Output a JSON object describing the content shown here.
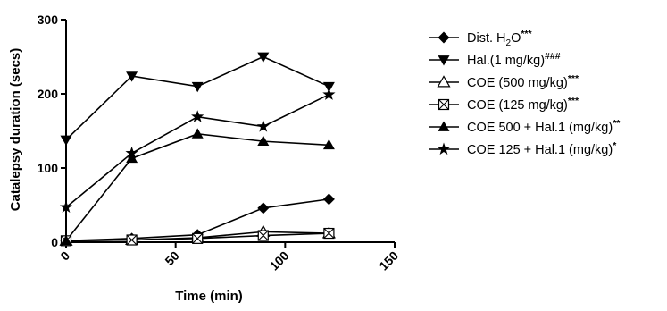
{
  "chart_data": {
    "type": "line",
    "xlabel": "Time (min)",
    "ylabel": "Catalepsy duration (secs)",
    "xlim": [
      0,
      150
    ],
    "ylim": [
      0,
      300
    ],
    "x_ticks": [
      0,
      50,
      100,
      150
    ],
    "y_ticks": [
      0,
      100,
      200,
      300
    ],
    "x_tick_labels": [
      "0",
      "50",
      "100",
      "150"
    ],
    "y_tick_labels": [
      "0",
      "100",
      "200",
      "300"
    ],
    "x": [
      0,
      30,
      60,
      90,
      120
    ],
    "grid": false,
    "legend_position": "right",
    "series": [
      {
        "name": "Dist. H2O",
        "legend": {
          "main": "Dist. H",
          "sub": "2",
          "rest": "O",
          "sup": "***"
        },
        "marker": "diamond",
        "values": [
          2,
          5,
          10,
          46,
          58
        ]
      },
      {
        "name": "Hal.(1 mg/kg)",
        "legend": {
          "main": "Hal.(1 mg/kg)",
          "sup": "###"
        },
        "marker": "triangle-down",
        "values": [
          138,
          224,
          210,
          250,
          210
        ]
      },
      {
        "name": "COE (500 mg/kg)",
        "legend": {
          "main": "COE (500 mg/kg)",
          "sup": "***"
        },
        "marker": "triangle-open",
        "values": [
          2,
          3,
          6,
          14,
          12
        ]
      },
      {
        "name": "COE (125 mg/kg)",
        "legend": {
          "main": "COE (125 mg/kg)",
          "sup": "***"
        },
        "marker": "square-x",
        "values": [
          2,
          3,
          5,
          9,
          12
        ]
      },
      {
        "name": "COE 500 + Hal.1 (mg/kg)",
        "legend": {
          "main": "COE 500 + Hal.1 (mg/kg)",
          "sup": "**"
        },
        "marker": "triangle-up",
        "values": [
          2,
          113,
          146,
          136,
          131
        ]
      },
      {
        "name": "COE 125 + Hal.1 (mg/kg)",
        "legend": {
          "main": "COE 125 + Hal.1 (mg/kg)",
          "sup": "*"
        },
        "marker": "star",
        "values": [
          47,
          120,
          169,
          156,
          199
        ]
      }
    ]
  }
}
